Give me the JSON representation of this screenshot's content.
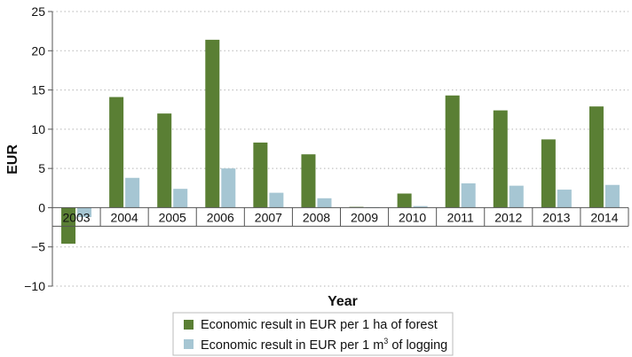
{
  "chart_data": {
    "type": "bar",
    "title": "",
    "xlabel": "Year",
    "ylabel": "EUR",
    "ylim": [
      -10,
      25
    ],
    "yticks": [
      25,
      20,
      15,
      10,
      5,
      0,
      -5,
      -10
    ],
    "grid": "horizontal dotted",
    "legend_position": "bottom",
    "categories": [
      "2003",
      "2004",
      "2005",
      "2006",
      "2007",
      "2008",
      "2009",
      "2010",
      "2011",
      "2012",
      "2013",
      "2014"
    ],
    "series": [
      {
        "name": "Economic result in EUR per 1 ha of forest",
        "color": "#5a7f34",
        "values": [
          -4.6,
          14.1,
          12.0,
          21.4,
          8.3,
          6.8,
          0.1,
          1.8,
          14.3,
          12.4,
          8.7,
          12.9
        ]
      },
      {
        "name_prefix": "Economic result in EUR per 1 m",
        "name_superscript": "3",
        "name_suffix": " of logging",
        "color": "#a6c6d3",
        "values": [
          -1.2,
          3.8,
          2.4,
          5.0,
          1.9,
          1.2,
          0.05,
          0.2,
          3.1,
          2.8,
          2.3,
          2.9
        ]
      }
    ]
  }
}
